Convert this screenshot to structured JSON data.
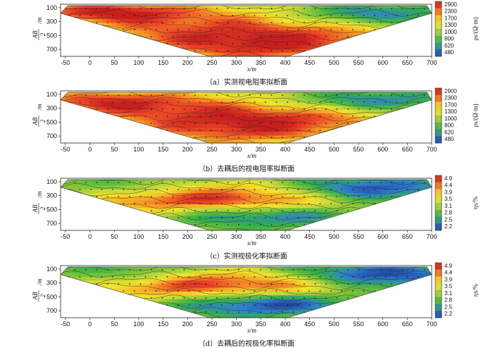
{
  "panels": [
    {
      "caption": "（a）实测视电阻率拟断面",
      "cb_label": "ρs/(Ω·m)",
      "kind": "rho",
      "variant": 0
    },
    {
      "caption": "（b）去耦后的视电阻率拟断面",
      "cb_label": "ρs/(Ω·m)",
      "kind": "rho",
      "variant": 1
    },
    {
      "caption": "（c）实测视极化率拟断面",
      "cb_label": "ηs/%",
      "kind": "eta",
      "variant": 2
    },
    {
      "caption": "（d）去耦后的视极化率拟断面",
      "cb_label": "ηs/%",
      "kind": "eta",
      "variant": 3
    }
  ],
  "axes": {
    "x_ticks": [
      "-50",
      "0",
      "50",
      "100",
      "150",
      "200",
      "250",
      "300",
      "350",
      "400",
      "450",
      "500",
      "550",
      "600",
      "650",
      "700"
    ],
    "y_ticks": [
      "100",
      "300",
      "500",
      "700"
    ],
    "xlabel": "x/m",
    "ylabel_frac_num": "AB",
    "ylabel_frac_den": "2",
    "ylabel_unit": "/m"
  },
  "colors": {
    "scale": [
      "#1f3f9a",
      "#2e7fd0",
      "#34b04a",
      "#7cc43a",
      "#c6d83a",
      "#f2e52b",
      "#f6a623",
      "#ef4a26",
      "#c81e1e"
    ]
  },
  "chart_data": [
    {
      "type": "heatmap",
      "title": "（a）实测视电阻率拟断面",
      "xlabel": "x/m",
      "ylabel": "AB/2 /m",
      "xlim": [
        -60,
        700
      ],
      "ylim": [
        800,
        50
      ],
      "colorbar": {
        "label": "ρs/(Ω·m)",
        "ticks": [
          2900,
          2300,
          1700,
          1300,
          1000,
          800,
          620,
          480
        ]
      }
    },
    {
      "type": "heatmap",
      "title": "（b）去耦后的视电阻率拟断面",
      "xlabel": "x/m",
      "ylabel": "AB/2 /m",
      "xlim": [
        -60,
        700
      ],
      "ylim": [
        800,
        50
      ],
      "colorbar": {
        "label": "ρs/(Ω·m)",
        "ticks": [
          2900,
          2300,
          1700,
          1300,
          1000,
          800,
          620,
          480
        ]
      }
    },
    {
      "type": "heatmap",
      "title": "（c）实测视极化率拟断面",
      "xlabel": "x/m",
      "ylabel": "AB/2 /m",
      "xlim": [
        -60,
        700
      ],
      "ylim": [
        800,
        50
      ],
      "colorbar": {
        "label": "ηs/%",
        "ticks": [
          4.9,
          4.4,
          3.9,
          3.5,
          3.1,
          2.8,
          2.5,
          2.2
        ]
      }
    },
    {
      "type": "heatmap",
      "title": "（d）去耦后的视极化率拟断面",
      "xlabel": "x/m",
      "ylabel": "AB/2 /m",
      "xlim": [
        -60,
        700
      ],
      "ylim": [
        800,
        50
      ],
      "colorbar": {
        "label": "ηs/%",
        "ticks": [
          4.9,
          4.4,
          3.9,
          3.5,
          3.1,
          2.8,
          2.5,
          2.2
        ]
      }
    }
  ]
}
